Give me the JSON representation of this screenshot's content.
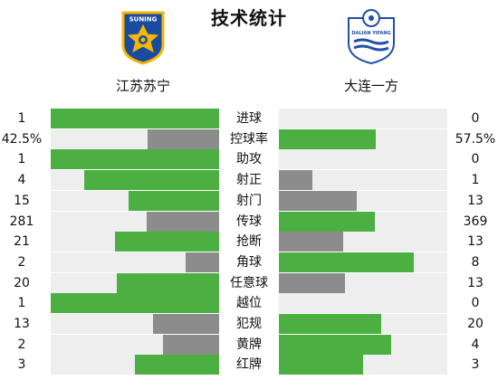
{
  "title": "技术统计",
  "home_team": {
    "name": "江苏苏宁",
    "logo_text": "SUNING",
    "logo_color": "#1b4aa1",
    "accent": "#f5b800"
  },
  "away_team": {
    "name": "大连一方",
    "logo_text": "DALIAN YIFANG",
    "logo_color": "#1f4fa8"
  },
  "colors": {
    "winner": "#4caf42",
    "loser": "#8c8c8c",
    "track": "#eeeeee"
  },
  "stats": [
    {
      "label": "进球",
      "home": "1",
      "away": "0",
      "home_frac": 1.0,
      "away_frac": 0.0
    },
    {
      "label": "控球率",
      "home": "42.5%",
      "away": "57.5%",
      "home_frac": 0.425,
      "away_frac": 0.575
    },
    {
      "label": "助攻",
      "home": "1",
      "away": "0",
      "home_frac": 1.0,
      "away_frac": 0.0
    },
    {
      "label": "射正",
      "home": "4",
      "away": "1",
      "home_frac": 0.8,
      "away_frac": 0.2
    },
    {
      "label": "射门",
      "home": "15",
      "away": "13",
      "home_frac": 0.536,
      "away_frac": 0.464
    },
    {
      "label": "传球",
      "home": "281",
      "away": "369",
      "home_frac": 0.432,
      "away_frac": 0.568
    },
    {
      "label": "抢断",
      "home": "21",
      "away": "13",
      "home_frac": 0.618,
      "away_frac": 0.382
    },
    {
      "label": "角球",
      "home": "2",
      "away": "8",
      "home_frac": 0.2,
      "away_frac": 0.8
    },
    {
      "label": "任意球",
      "home": "20",
      "away": "13",
      "home_frac": 0.606,
      "away_frac": 0.394
    },
    {
      "label": "越位",
      "home": "1",
      "away": "0",
      "home_frac": 1.0,
      "away_frac": 0.0
    },
    {
      "label": "犯规",
      "home": "13",
      "away": "20",
      "home_frac": 0.394,
      "away_frac": 0.606
    },
    {
      "label": "黄牌",
      "home": "2",
      "away": "4",
      "home_frac": 0.333,
      "away_frac": 0.667
    },
    {
      "label": "红牌",
      "home": "3",
      "away": "3",
      "home_frac": 0.5,
      "away_frac": 0.5
    }
  ]
}
